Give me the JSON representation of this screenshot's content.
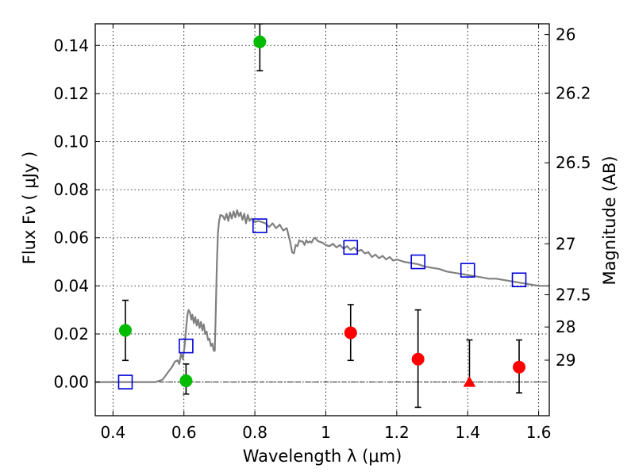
{
  "chart_data": {
    "type": "scatter",
    "xlabel": "Wavelength  λ (μm)",
    "ylabel": "Flux  Fν ( μJy )",
    "ylabel_right": "Magnitude (AB)",
    "xlim": [
      0.35,
      1.63
    ],
    "ylim": [
      -0.014,
      0.149
    ],
    "grid": true,
    "x_ticks": [
      0.4,
      0.6,
      0.8,
      1.0,
      1.2,
      1.4,
      1.6
    ],
    "x_tick_labels": [
      "0.4",
      "0.6",
      "0.8",
      "1",
      "1.2",
      "1.4",
      "1.6"
    ],
    "y_ticks": [
      0.0,
      0.02,
      0.04,
      0.06,
      0.08,
      0.1,
      0.12,
      0.14
    ],
    "y_tick_labels": [
      "0.00",
      "0.02",
      "0.04",
      "0.06",
      "0.08",
      "0.10",
      "0.12",
      "0.14"
    ],
    "right_ticks": [
      {
        "label": "26",
        "flux": 0.1445
      },
      {
        "label": "26.2",
        "flux": 0.1202
      },
      {
        "label": "26.5",
        "flux": 0.0912
      },
      {
        "label": "27",
        "flux": 0.0575
      },
      {
        "label": "27.5",
        "flux": 0.0363
      },
      {
        "label": "28",
        "flux": 0.0229
      },
      {
        "label": "29",
        "flux": 0.0091
      }
    ],
    "series": [
      {
        "kind": "line",
        "color": "#808080",
        "points": [
          [
            0.35,
            0.0
          ],
          [
            0.52,
            0.0
          ],
          [
            0.54,
            0.001
          ],
          [
            0.555,
            0.004
          ],
          [
            0.565,
            0.006
          ],
          [
            0.575,
            0.0085
          ],
          [
            0.582,
            0.009
          ],
          [
            0.587,
            0.0075
          ],
          [
            0.592,
            0.012
          ],
          [
            0.597,
            0.0095
          ],
          [
            0.602,
            0.015
          ],
          [
            0.606,
            0.022
          ],
          [
            0.61,
            0.028
          ],
          [
            0.613,
            0.03
          ],
          [
            0.617,
            0.029
          ],
          [
            0.621,
            0.026
          ],
          [
            0.624,
            0.028
          ],
          [
            0.628,
            0.0245
          ],
          [
            0.632,
            0.027
          ],
          [
            0.636,
            0.0235
          ],
          [
            0.64,
            0.026
          ],
          [
            0.644,
            0.0225
          ],
          [
            0.648,
            0.025
          ],
          [
            0.652,
            0.0215
          ],
          [
            0.656,
            0.024
          ],
          [
            0.66,
            0.02
          ],
          [
            0.664,
            0.021
          ],
          [
            0.668,
            0.0175
          ],
          [
            0.672,
            0.018
          ],
          [
            0.676,
            0.015
          ],
          [
            0.68,
            0.016
          ],
          [
            0.684,
            0.013
          ],
          [
            0.687,
            0.013
          ],
          [
            0.69,
            0.03
          ],
          [
            0.693,
            0.05
          ],
          [
            0.696,
            0.062
          ],
          [
            0.699,
            0.067
          ],
          [
            0.703,
            0.0695
          ],
          [
            0.71,
            0.069
          ],
          [
            0.715,
            0.0675
          ],
          [
            0.72,
            0.07
          ],
          [
            0.725,
            0.067
          ],
          [
            0.73,
            0.0705
          ],
          [
            0.735,
            0.068
          ],
          [
            0.74,
            0.071
          ],
          [
            0.745,
            0.0685
          ],
          [
            0.75,
            0.0715
          ],
          [
            0.755,
            0.069
          ],
          [
            0.76,
            0.0705
          ],
          [
            0.765,
            0.0675
          ],
          [
            0.77,
            0.07
          ],
          [
            0.775,
            0.066
          ],
          [
            0.78,
            0.0695
          ],
          [
            0.785,
            0.067
          ],
          [
            0.79,
            0.068
          ],
          [
            0.8,
            0.0665
          ],
          [
            0.81,
            0.067
          ],
          [
            0.82,
            0.0665
          ],
          [
            0.83,
            0.066
          ],
          [
            0.84,
            0.0645
          ],
          [
            0.85,
            0.066
          ],
          [
            0.86,
            0.064
          ],
          [
            0.87,
            0.0655
          ],
          [
            0.88,
            0.063
          ],
          [
            0.89,
            0.064
          ],
          [
            0.9,
            0.058
          ],
          [
            0.905,
            0.054
          ],
          [
            0.91,
            0.0535
          ],
          [
            0.915,
            0.057
          ],
          [
            0.92,
            0.0565
          ],
          [
            0.925,
            0.059
          ],
          [
            0.93,
            0.0585
          ],
          [
            0.935,
            0.0585
          ],
          [
            0.94,
            0.057
          ],
          [
            0.945,
            0.059
          ],
          [
            0.95,
            0.058
          ],
          [
            0.955,
            0.0585
          ],
          [
            0.96,
            0.058
          ],
          [
            0.965,
            0.0595
          ],
          [
            0.97,
            0.06
          ],
          [
            0.975,
            0.059
          ],
          [
            0.98,
            0.0585
          ],
          [
            0.99,
            0.058
          ],
          [
            1.0,
            0.057
          ],
          [
            1.01,
            0.0565
          ],
          [
            1.02,
            0.0575
          ],
          [
            1.03,
            0.056
          ],
          [
            1.04,
            0.057
          ],
          [
            1.05,
            0.0555
          ],
          [
            1.06,
            0.0565
          ],
          [
            1.07,
            0.055
          ],
          [
            1.08,
            0.056
          ],
          [
            1.09,
            0.0545
          ],
          [
            1.1,
            0.055
          ],
          [
            1.11,
            0.0535
          ],
          [
            1.12,
            0.054
          ],
          [
            1.13,
            0.052
          ],
          [
            1.14,
            0.053
          ],
          [
            1.15,
            0.0515
          ],
          [
            1.16,
            0.0525
          ],
          [
            1.17,
            0.051
          ],
          [
            1.18,
            0.052
          ],
          [
            1.19,
            0.0505
          ],
          [
            1.2,
            0.051
          ],
          [
            1.22,
            0.05
          ],
          [
            1.24,
            0.0495
          ],
          [
            1.26,
            0.049
          ],
          [
            1.28,
            0.048
          ],
          [
            1.3,
            0.0475
          ],
          [
            1.32,
            0.047
          ],
          [
            1.34,
            0.046
          ],
          [
            1.36,
            0.0455
          ],
          [
            1.38,
            0.045
          ],
          [
            1.4,
            0.0445
          ],
          [
            1.42,
            0.044
          ],
          [
            1.44,
            0.0435
          ],
          [
            1.46,
            0.043
          ],
          [
            1.48,
            0.043
          ],
          [
            1.5,
            0.0425
          ],
          [
            1.52,
            0.042
          ],
          [
            1.54,
            0.0415
          ],
          [
            1.56,
            0.041
          ],
          [
            1.58,
            0.0405
          ],
          [
            1.6,
            0.04
          ],
          [
            1.63,
            0.04
          ]
        ]
      },
      {
        "kind": "open-square",
        "color": "#0000dd",
        "points": [
          [
            0.435,
            0.0
          ],
          [
            0.606,
            0.015
          ],
          [
            0.814,
            0.065
          ],
          [
            1.07,
            0.056
          ],
          [
            1.26,
            0.05
          ],
          [
            1.4,
            0.0465
          ],
          [
            1.545,
            0.0425
          ]
        ]
      },
      {
        "kind": "filled-circle",
        "color": "#00bb00",
        "points": [
          {
            "x": 0.435,
            "y": 0.0215,
            "lo": 0.009,
            "hi": 0.034
          },
          {
            "x": 0.606,
            "y": 0.0005,
            "lo": -0.005,
            "hi": 0.0075
          },
          {
            "x": 0.814,
            "y": 0.1415,
            "lo": 0.1295,
            "hi": 0.149
          }
        ]
      },
      {
        "kind": "filled-circle",
        "color": "#ff0000",
        "points": [
          {
            "x": 1.07,
            "y": 0.0205,
            "lo": 0.009,
            "hi": 0.0322
          },
          {
            "x": 1.26,
            "y": 0.0095,
            "lo": -0.0105,
            "hi": 0.03
          },
          {
            "x": 1.545,
            "y": 0.0062,
            "lo": -0.0045,
            "hi": 0.0175
          }
        ]
      },
      {
        "kind": "filled-triangle",
        "color": "#ff0000",
        "points": [
          {
            "x": 1.405,
            "y": -0.0005,
            "lo": -0.0005,
            "hi": 0.0175
          }
        ]
      }
    ]
  }
}
